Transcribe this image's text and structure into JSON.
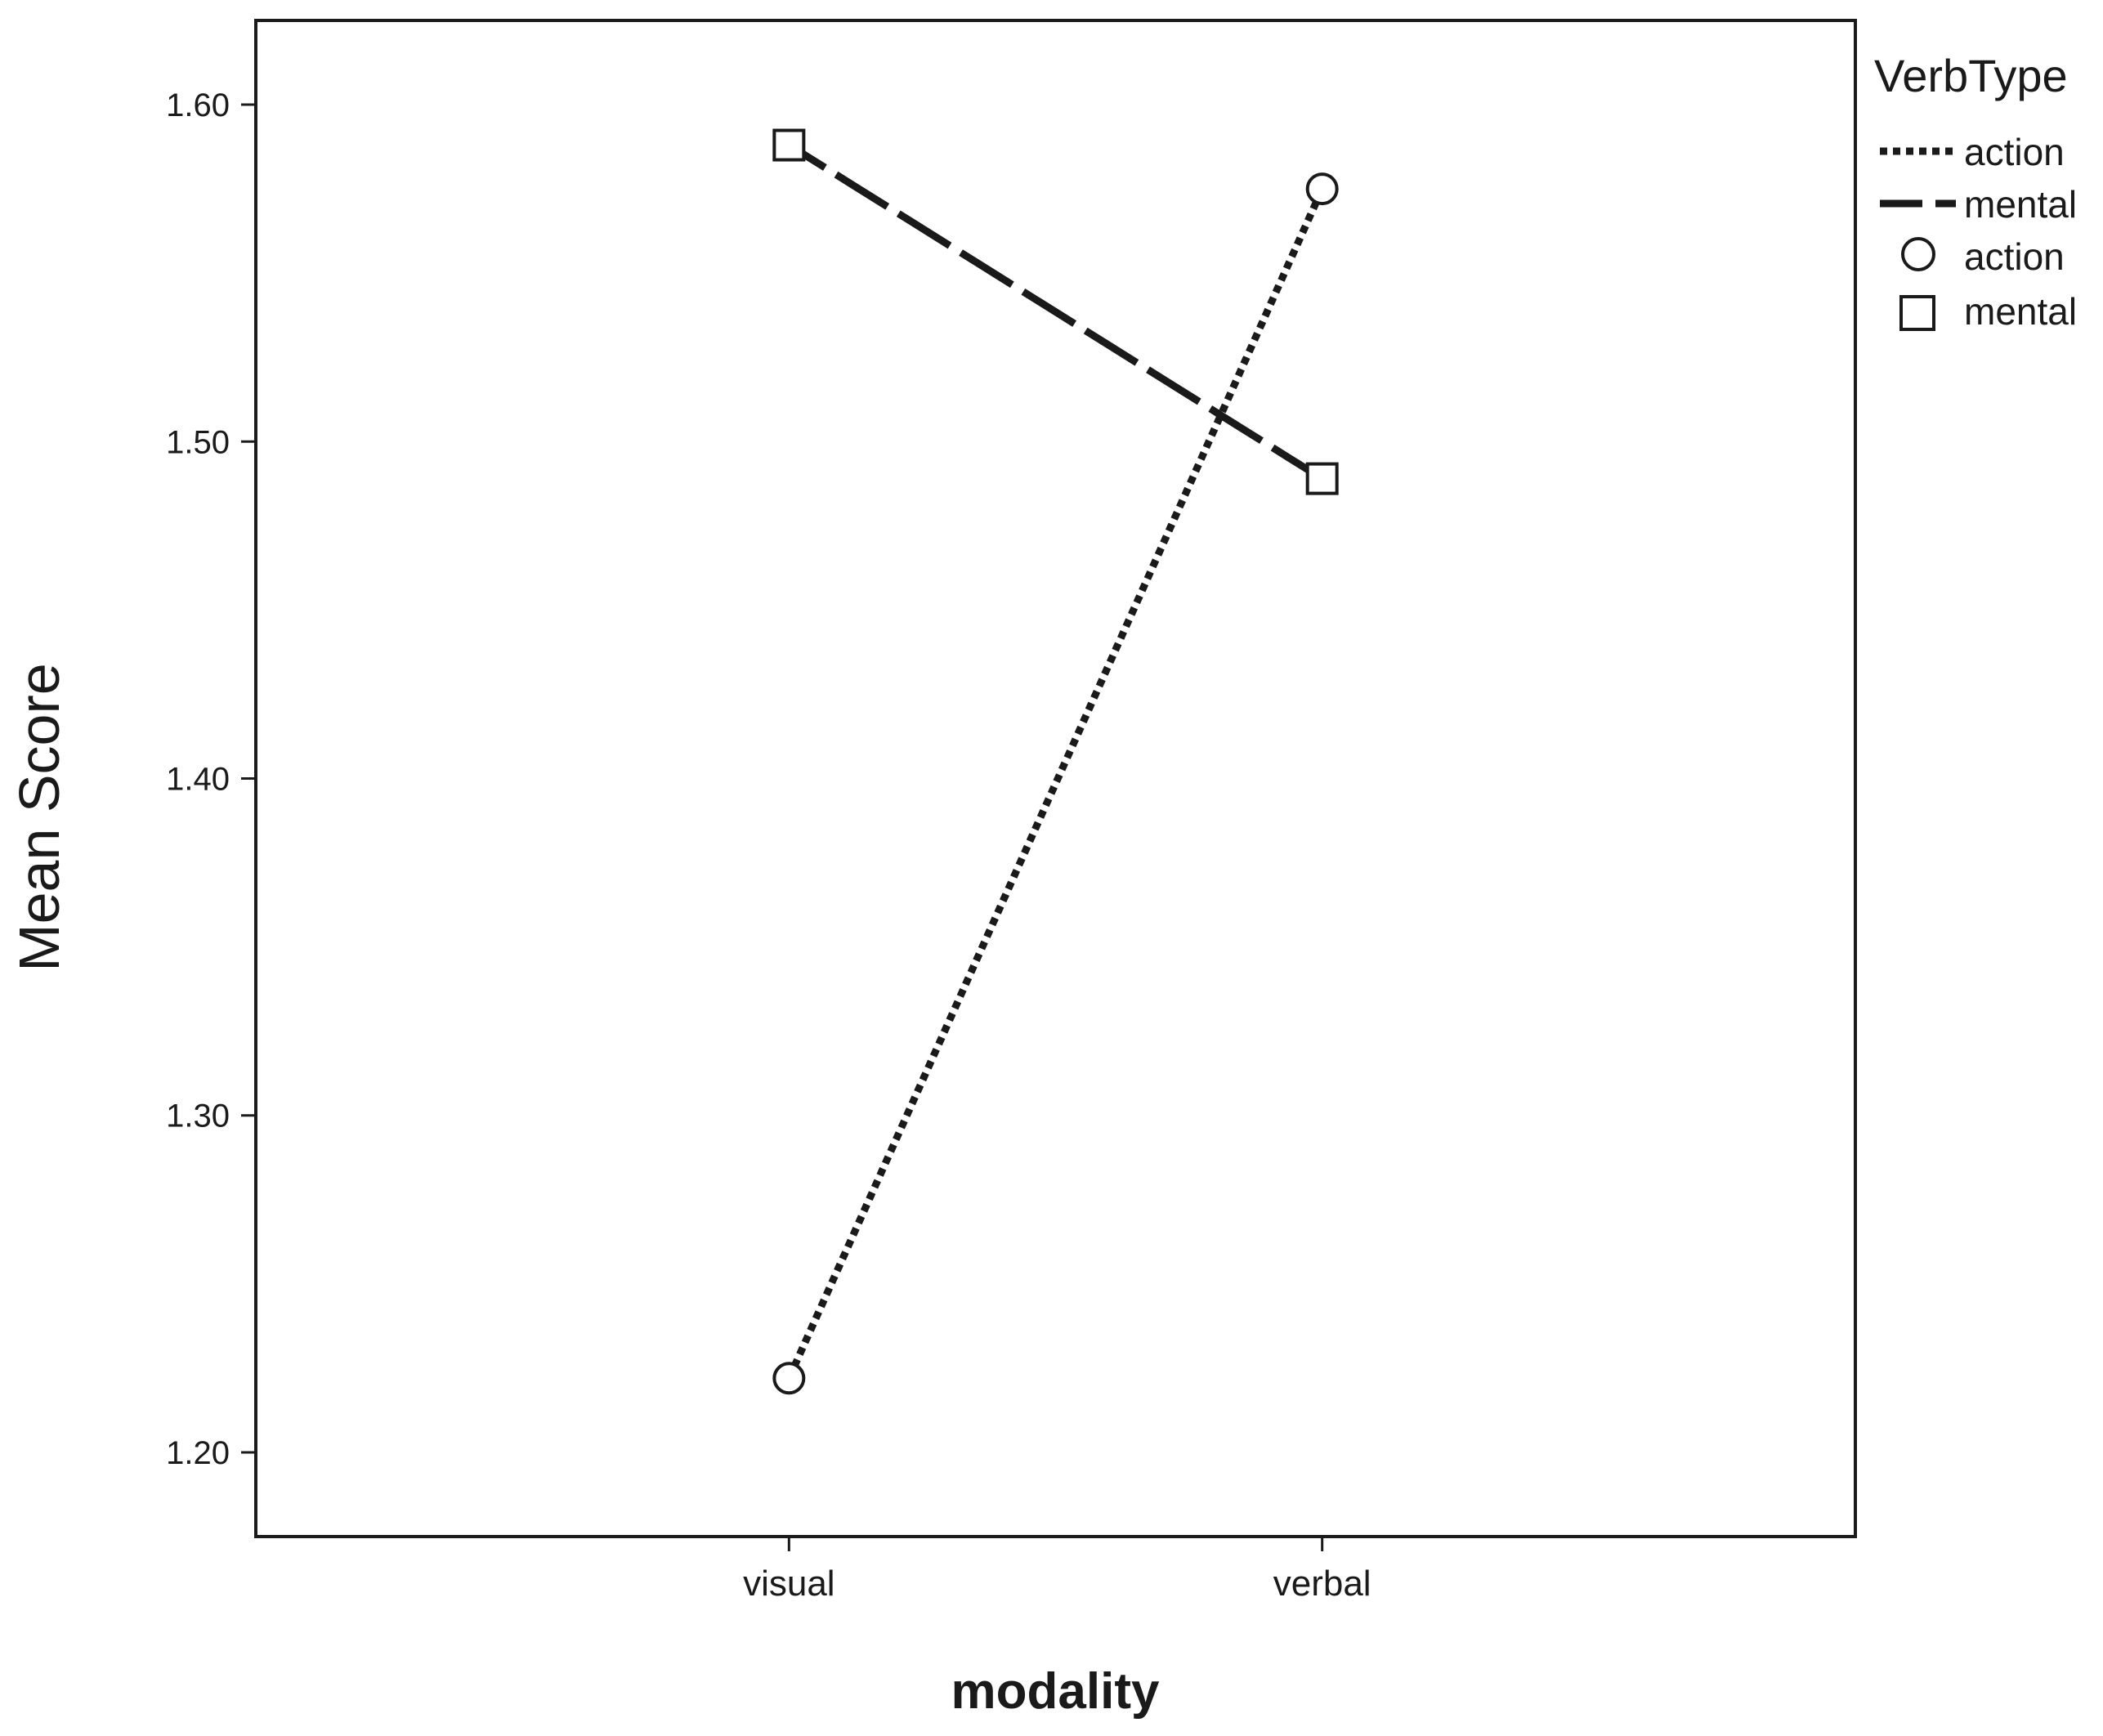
{
  "chart_data": {
    "type": "line",
    "xlabel": "modality",
    "ylabel": "Mean Score",
    "categories": [
      "visual",
      "verbal"
    ],
    "ylim": [
      1.175,
      1.625
    ],
    "yticks": [
      "1.20",
      "1.30",
      "1.40",
      "1.50",
      "1.60"
    ],
    "grid": false,
    "legend": {
      "title": "VerbType",
      "placement": "right",
      "lines": [
        "action",
        "mental"
      ],
      "markers": [
        "action",
        "mental"
      ]
    },
    "series": [
      {
        "name": "action",
        "values": [
          1.222,
          1.575
        ],
        "line": "dotted",
        "marker": "circle",
        "color": "#1a1a1a"
      },
      {
        "name": "mental",
        "values": [
          1.588,
          1.489
        ],
        "line": "dashed",
        "marker": "square",
        "color": "#1a1a1a"
      }
    ]
  }
}
